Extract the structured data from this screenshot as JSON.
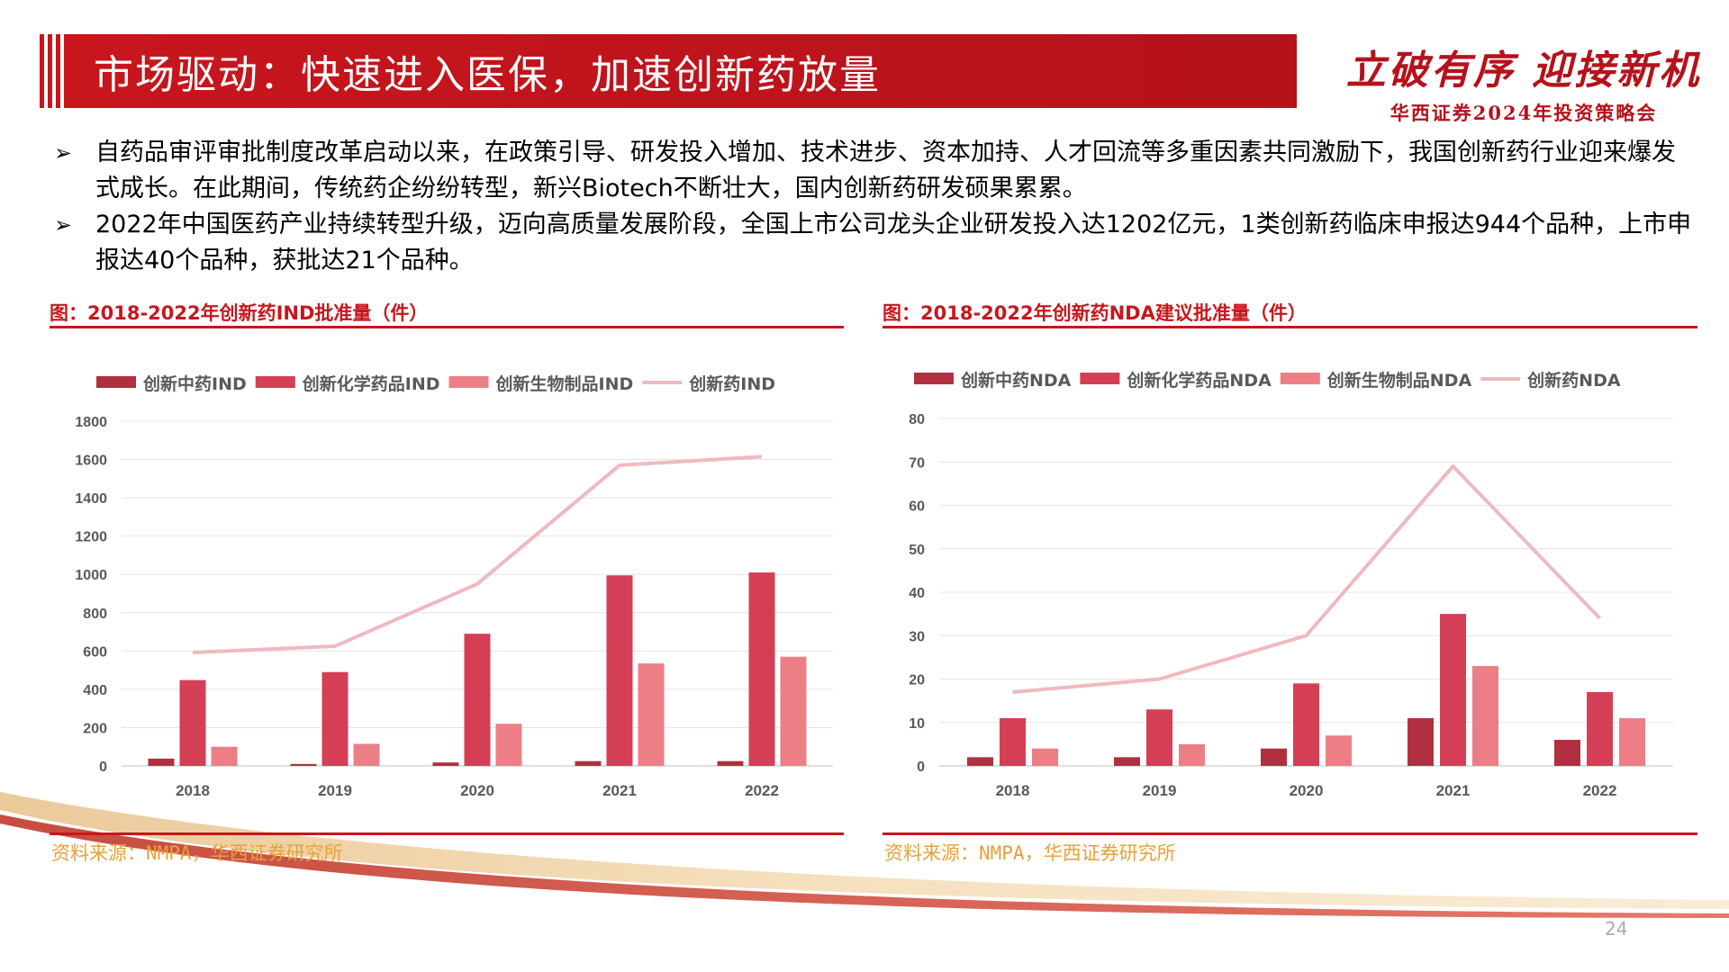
{
  "header": {
    "title": "市场驱动：快速进入医保，加速创新药放量"
  },
  "brand": {
    "slogan": "立破有序 迎接新机",
    "subtitle": "华西证券2024年投资策略会"
  },
  "bullets": [
    {
      "marker": "➢",
      "text": "自药品审评审批制度改革启动以来，在政策引导、研发投入增加、技术进步、资本加持、人才回流等多重因素共同激励下，我国创新药行业迎来爆发式成长。在此期间，传统药企纷纷转型，新兴Biotech不断壮大，国内创新药研发硕果累累。"
    },
    {
      "marker": "➢",
      "text": "2022年中国医药产业持续转型升级，迈向高质量发展阶段，全国上市公司龙头企业研发投入达1202亿元，1类创新药临床申报达944个品种，上市申报达40个品种，获批达21个品种。"
    }
  ],
  "charts": [
    {
      "heading": "图：2018-2022年创新药IND批准量（件）",
      "source": "资料来源：NMPA，华西证券研究所"
    },
    {
      "heading": "图：2018-2022年创新药NDA建议批准量（件）",
      "source": "资料来源：NMPA，华西证券研究所"
    }
  ],
  "chart_data": [
    {
      "type": "bar",
      "categories": [
        "2018",
        "2019",
        "2020",
        "2021",
        "2022"
      ],
      "series": [
        {
          "name": "创新中药IND",
          "kind": "bar",
          "color": "#b03040",
          "values": [
            38,
            10,
            18,
            25,
            25
          ]
        },
        {
          "name": "创新化学药品IND",
          "kind": "bar",
          "color": "#d43f55",
          "values": [
            448,
            490,
            690,
            995,
            1010
          ]
        },
        {
          "name": "创新生物制品IND",
          "kind": "bar",
          "color": "#ec7f86",
          "values": [
            100,
            115,
            220,
            535,
            570
          ]
        },
        {
          "name": "创新药IND",
          "kind": "line",
          "color": "#f0b9bf",
          "values": [
            592,
            625,
            950,
            1570,
            1615
          ]
        }
      ],
      "ylim": [
        0,
        1800
      ],
      "yticks": [
        "0",
        "200",
        "400",
        "600",
        "800",
        "1000",
        "1200",
        "1400",
        "1600",
        "1800"
      ],
      "legend": "top",
      "grid": true
    },
    {
      "type": "bar",
      "categories": [
        "2018",
        "2019",
        "2020",
        "2021",
        "2022"
      ],
      "series": [
        {
          "name": "创新中药NDA",
          "kind": "bar",
          "color": "#b03040",
          "values": [
            2,
            2,
            4,
            11,
            6
          ]
        },
        {
          "name": "创新化学药品NDA",
          "kind": "bar",
          "color": "#d43f55",
          "values": [
            11,
            13,
            19,
            35,
            17
          ]
        },
        {
          "name": "创新生物制品NDA",
          "kind": "bar",
          "color": "#ec7f86",
          "values": [
            4,
            5,
            7,
            23,
            11
          ]
        },
        {
          "name": "创新药NDA",
          "kind": "line",
          "color": "#f0b9bf",
          "values": [
            17,
            20,
            30,
            69,
            34
          ]
        }
      ],
      "ylim": [
        0,
        80
      ],
      "yticks": [
        "0",
        "10",
        "20",
        "30",
        "40",
        "50",
        "60",
        "70",
        "80"
      ],
      "legend": "top",
      "grid": true
    }
  ],
  "page_number": "24"
}
